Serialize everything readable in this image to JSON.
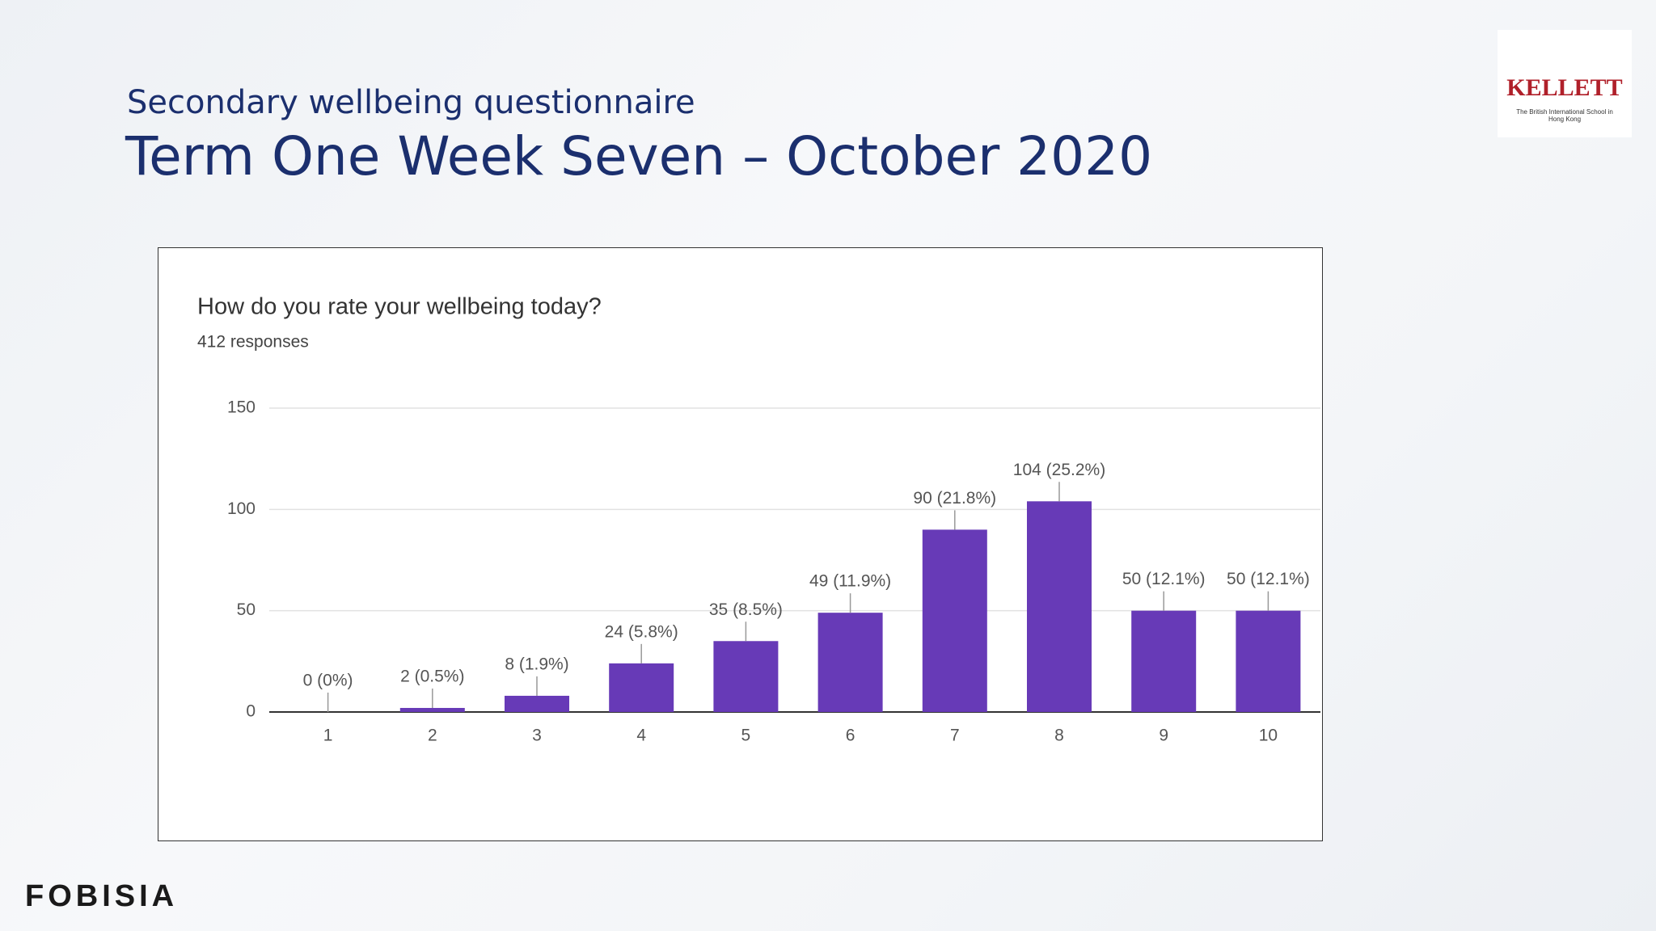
{
  "header": {
    "subtitle": "Secondary wellbeing questionnaire",
    "title": "Term One Week Seven – October 2020"
  },
  "logo": {
    "name": "KELLETT",
    "caption": "The British International School in Hong Kong"
  },
  "footer": {
    "brand": "FOBISIA"
  },
  "chart_data": {
    "type": "bar",
    "title": "How do you rate your wellbeing today?",
    "subtitle": "412 responses",
    "categories": [
      "1",
      "2",
      "3",
      "4",
      "5",
      "6",
      "7",
      "8",
      "9",
      "10"
    ],
    "values": [
      0,
      2,
      8,
      24,
      35,
      49,
      90,
      104,
      50,
      50
    ],
    "value_labels": [
      "0 (0%)",
      "2 (0.5%)",
      "8 (1.9%)",
      "24 (5.8%)",
      "35 (8.5%)",
      "49 (11.9%)",
      "90 (21.8%)",
      "104 (25.2%)",
      "50 (12.1%)",
      "50 (12.1%)"
    ],
    "color": "#673ab7",
    "ylim": [
      0,
      150
    ],
    "yticks": [
      0,
      50,
      100,
      150
    ],
    "grid": true
  }
}
